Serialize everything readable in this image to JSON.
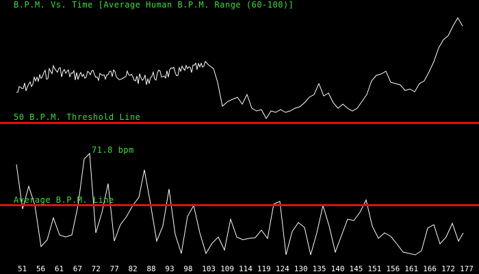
{
  "monitor": {
    "title": "B.P.M. Vs. Time [Average Human B.P.M. Range (60-100)]",
    "threshold_label": "50 B.P.M. Threshold Line",
    "average_label": "Average B.P.M. Line",
    "peak_label": "71.8 bpm",
    "x_axis_ticks": [
      "51",
      "56",
      "61",
      "67",
      "72",
      "77",
      "82",
      "88",
      "93",
      "98",
      "103",
      "109",
      "114",
      "119",
      "124",
      "130",
      "135",
      "140",
      "145",
      "151",
      "156",
      "161",
      "166",
      "172",
      "177"
    ],
    "colors": {
      "background": "#000000",
      "text": "#3ddc3d",
      "reference_lines": "#e01010",
      "traces": "#ffffff"
    }
  }
}
